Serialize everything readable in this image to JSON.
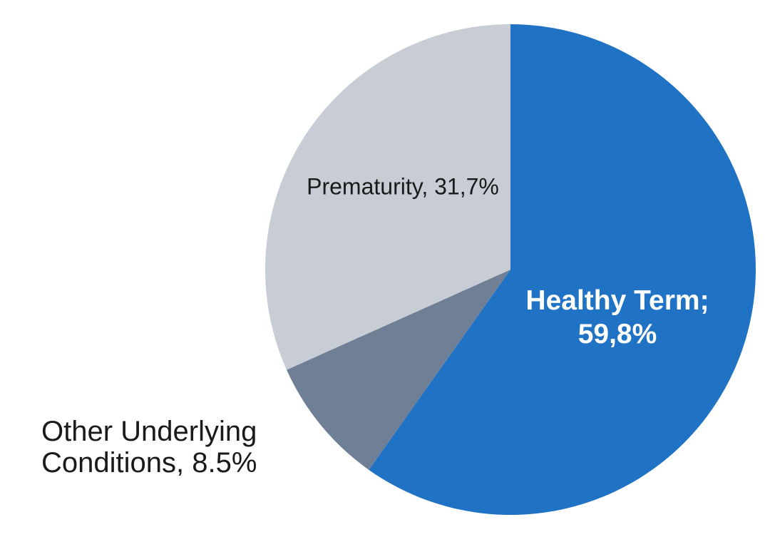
{
  "chart_data": {
    "type": "pie",
    "title": "",
    "legend": "none",
    "background_color": "#FFFFFF",
    "start_angle_deg": 0,
    "direction": "clockwise",
    "slices": [
      {
        "name": "Healthy Term",
        "value": 59.8,
        "color": "#1F72C4",
        "label_on_chart": "Healthy Term; 59,8%",
        "label_color": "#FFFFFF"
      },
      {
        "name": "Other Underlying Conditions",
        "value": 8.5,
        "color": "#6F7F96",
        "label_on_chart": "Other Underlying Conditions, 8.5%",
        "label_color": "#1A1A1A"
      },
      {
        "name": "Prematurity",
        "value": 31.7,
        "color": "#C8CCD5",
        "label_on_chart": "Prematurity, 31,7%",
        "label_color": "#1A1A1A"
      }
    ]
  },
  "labels": {
    "prematurity": "Prematurity, 31,7%",
    "healthy_term_line1": "Healthy Term;",
    "healthy_term_line2": "59,8%",
    "other_line1": "Other Underlying",
    "other_line2": "Conditions, 8.5%"
  }
}
